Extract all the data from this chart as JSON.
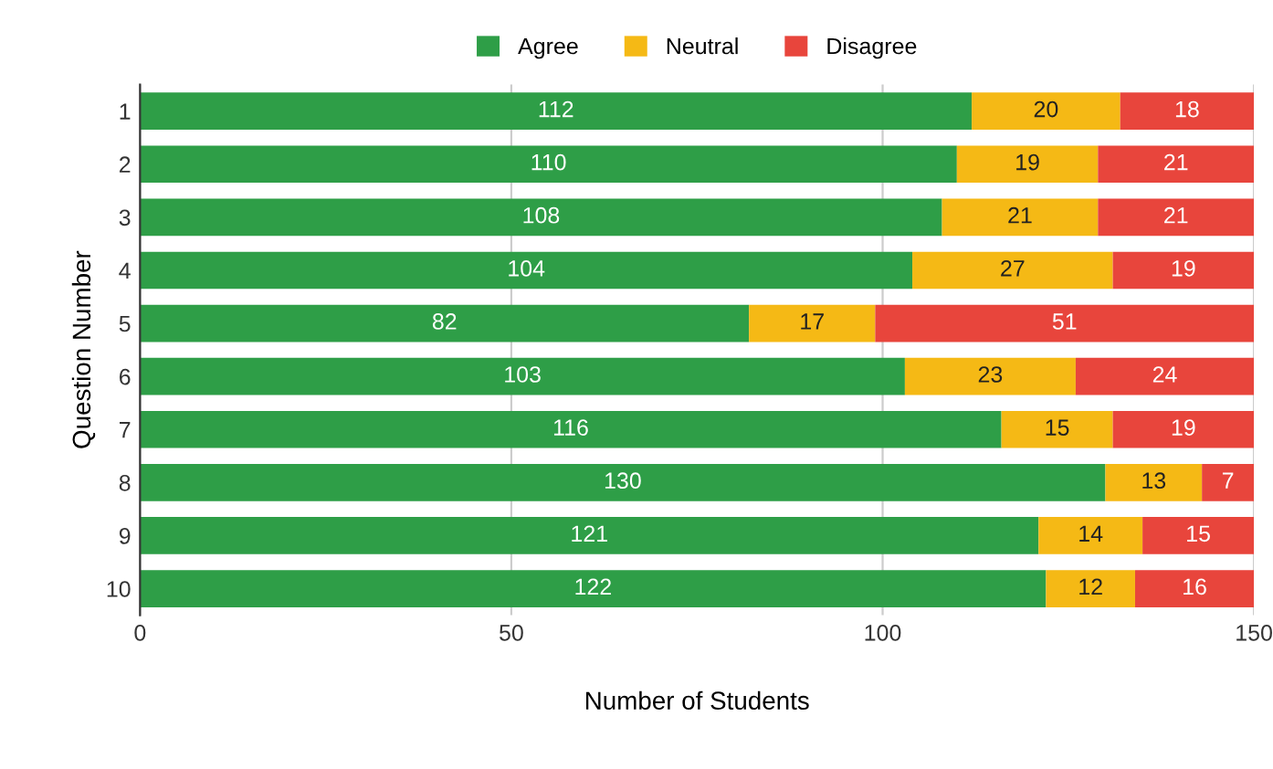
{
  "chart_data": {
    "type": "bar",
    "orientation": "horizontal",
    "stacked": true,
    "data_labels": true,
    "xlabel": "Number of Students",
    "ylabel": "Question Number",
    "categories": [
      "1",
      "2",
      "3",
      "4",
      "5",
      "6",
      "7",
      "8",
      "9",
      "10"
    ],
    "series": [
      {
        "name": "Agree",
        "color": "#2e9e47",
        "values": [
          112,
          110,
          108,
          104,
          82,
          103,
          116,
          130,
          121,
          122
        ]
      },
      {
        "name": "Neutral",
        "color": "#f5b915",
        "values": [
          20,
          19,
          21,
          27,
          17,
          23,
          15,
          13,
          14,
          12
        ]
      },
      {
        "name": "Disagree",
        "color": "#e8453c",
        "values": [
          18,
          21,
          21,
          19,
          51,
          24,
          19,
          7,
          15,
          16
        ]
      }
    ],
    "xlim": [
      0,
      150
    ],
    "xticks": [
      0,
      50,
      100,
      150
    ],
    "grid": "x",
    "legend": "top"
  }
}
